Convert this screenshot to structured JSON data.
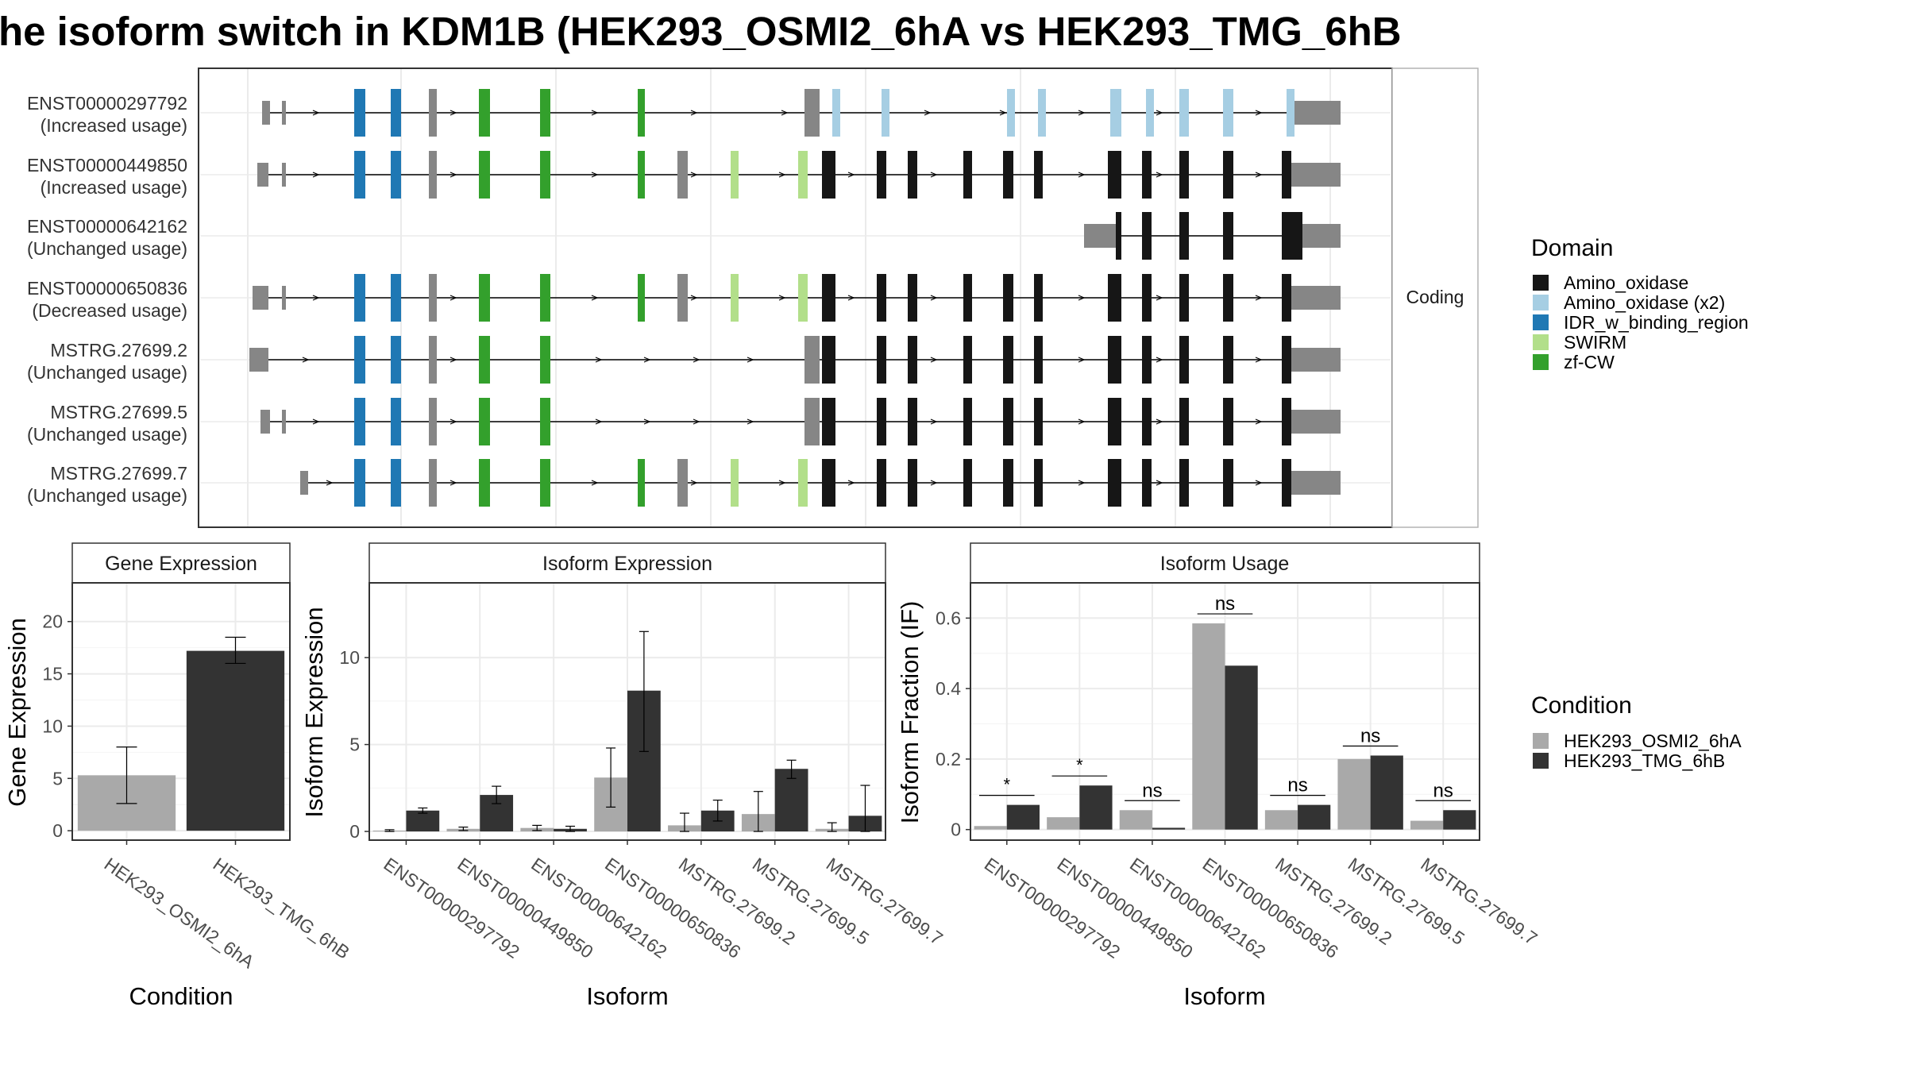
{
  "title": "he isoform switch in KDM1B (HEK293_OSMI2_6hA vs HEK293_TMG_6hB",
  "colors": {
    "Amino_oxidase": "#161616",
    "Amino_oxidase (x2)": "#a6cee3",
    "IDR_w_binding_region": "#1f78b4",
    "SWIRM": "#b2df8a",
    "zf-CW": "#33a02c",
    "noncoding": "#868686",
    "cond_a": "#a9a9a9",
    "cond_b": "#333333"
  },
  "structure": {
    "facet_label": "Coding",
    "transcripts": [
      {
        "id": "ENST00000297792",
        "usage": "(Increased usage)",
        "exons": [
          [
            330,
            340,
            "grey"
          ],
          [
            355,
            360,
            "grey"
          ],
          [
            446,
            460,
            "IDR_w_binding_region"
          ],
          [
            492,
            505,
            "IDR_w_binding_region"
          ],
          [
            540,
            550,
            "grey"
          ],
          [
            603,
            617,
            "zf-CW"
          ],
          [
            680,
            693,
            "zf-CW"
          ],
          [
            803,
            812,
            "zf-CW"
          ],
          [
            1013,
            1032,
            "grey"
          ],
          [
            1048,
            1058,
            "Amino_oxidase (x2)"
          ],
          [
            1110,
            1120,
            "Amino_oxidase (x2)"
          ],
          [
            1268,
            1278,
            "Amino_oxidase (x2)"
          ],
          [
            1307,
            1317,
            "Amino_oxidase (x2)"
          ],
          [
            1398,
            1412,
            "Amino_oxidase (x2)"
          ],
          [
            1443,
            1453,
            "Amino_oxidase (x2)"
          ],
          [
            1485,
            1497,
            "Amino_oxidase (x2)"
          ],
          [
            1540,
            1553,
            "Amino_oxidase (x2)"
          ],
          [
            1620,
            1630,
            "Amino_oxidase (x2)"
          ],
          [
            1630,
            1688,
            "grey"
          ]
        ],
        "cds_start": 446,
        "utr_end": 1630,
        "arrows": [
          398,
          571,
          749,
          874,
          988,
          1168,
          1263,
          1362,
          1460,
          1585
        ]
      },
      {
        "id": "ENST00000449850",
        "usage": "(Increased usage)",
        "exons": [
          [
            324,
            338,
            "grey"
          ],
          [
            355,
            360,
            "grey"
          ],
          [
            446,
            460,
            "IDR_w_binding_region"
          ],
          [
            492,
            505,
            "IDR_w_binding_region"
          ],
          [
            540,
            550,
            "grey"
          ],
          [
            603,
            617,
            "zf-CW"
          ],
          [
            680,
            693,
            "zf-CW"
          ],
          [
            803,
            812,
            "zf-CW"
          ],
          [
            853,
            866,
            "grey"
          ],
          [
            920,
            930,
            "SWIRM"
          ],
          [
            1005,
            1017,
            "SWIRM"
          ],
          [
            1035,
            1052,
            "Amino_oxidase"
          ],
          [
            1104,
            1116,
            "Amino_oxidase"
          ],
          [
            1143,
            1155,
            "Amino_oxidase"
          ],
          [
            1213,
            1224,
            "Amino_oxidase"
          ],
          [
            1263,
            1276,
            "Amino_oxidase"
          ],
          [
            1302,
            1313,
            "Amino_oxidase"
          ],
          [
            1395,
            1412,
            "Amino_oxidase"
          ],
          [
            1438,
            1450,
            "Amino_oxidase"
          ],
          [
            1485,
            1497,
            "Amino_oxidase"
          ],
          [
            1540,
            1553,
            "Amino_oxidase"
          ],
          [
            1614,
            1626,
            "Amino_oxidase"
          ],
          [
            1626,
            1688,
            "grey"
          ]
        ],
        "cds_start": 446,
        "utr_end": 1626,
        "arrows": [
          398,
          571,
          749,
          874,
          985,
          1072,
          1176,
          1362,
          1460,
          1585
        ]
      },
      {
        "id": "ENST00000642162",
        "usage": "(Unchanged usage)",
        "exons": [
          [
            1365,
            1405,
            "grey"
          ],
          [
            1405,
            1412,
            "Amino_oxidase"
          ],
          [
            1438,
            1450,
            "Amino_oxidase"
          ],
          [
            1485,
            1497,
            "Amino_oxidase"
          ],
          [
            1540,
            1553,
            "Amino_oxidase"
          ],
          [
            1614,
            1640,
            "Amino_oxidase"
          ],
          [
            1640,
            1688,
            "grey"
          ]
        ],
        "cds_start": 1405,
        "utr_end": 1640,
        "arrows": []
      },
      {
        "id": "ENST00000650836",
        "usage": "(Decreased usage)",
        "exons": [
          [
            318,
            338,
            "grey"
          ],
          [
            355,
            360,
            "grey"
          ],
          [
            446,
            460,
            "IDR_w_binding_region"
          ],
          [
            492,
            505,
            "IDR_w_binding_region"
          ],
          [
            540,
            550,
            "grey"
          ],
          [
            603,
            617,
            "zf-CW"
          ],
          [
            680,
            693,
            "zf-CW"
          ],
          [
            803,
            812,
            "zf-CW"
          ],
          [
            853,
            866,
            "grey"
          ],
          [
            920,
            930,
            "SWIRM"
          ],
          [
            1005,
            1017,
            "SWIRM"
          ],
          [
            1035,
            1052,
            "Amino_oxidase"
          ],
          [
            1104,
            1116,
            "Amino_oxidase"
          ],
          [
            1143,
            1155,
            "Amino_oxidase"
          ],
          [
            1213,
            1224,
            "Amino_oxidase"
          ],
          [
            1263,
            1276,
            "Amino_oxidase"
          ],
          [
            1302,
            1313,
            "Amino_oxidase"
          ],
          [
            1395,
            1412,
            "Amino_oxidase"
          ],
          [
            1438,
            1450,
            "Amino_oxidase"
          ],
          [
            1485,
            1497,
            "Amino_oxidase"
          ],
          [
            1540,
            1553,
            "Amino_oxidase"
          ],
          [
            1614,
            1626,
            "Amino_oxidase"
          ],
          [
            1626,
            1688,
            "grey"
          ]
        ],
        "cds_start": 446,
        "utr_end": 1626,
        "arrows": [
          398,
          571,
          749,
          874,
          985,
          1072,
          1176,
          1362,
          1460,
          1585
        ]
      },
      {
        "id": "MSTRG.27699.2",
        "usage": "(Unchanged usage)",
        "exons": [
          [
            314,
            338,
            "grey"
          ],
          [
            446,
            460,
            "IDR_w_binding_region"
          ],
          [
            492,
            505,
            "IDR_w_binding_region"
          ],
          [
            540,
            550,
            "grey"
          ],
          [
            603,
            617,
            "zf-CW"
          ],
          [
            680,
            693,
            "zf-CW"
          ],
          [
            1013,
            1032,
            "grey"
          ],
          [
            1035,
            1052,
            "Amino_oxidase"
          ],
          [
            1104,
            1116,
            "Amino_oxidase"
          ],
          [
            1143,
            1155,
            "Amino_oxidase"
          ],
          [
            1213,
            1224,
            "Amino_oxidase"
          ],
          [
            1263,
            1276,
            "Amino_oxidase"
          ],
          [
            1302,
            1313,
            "Amino_oxidase"
          ],
          [
            1395,
            1412,
            "Amino_oxidase"
          ],
          [
            1438,
            1450,
            "Amino_oxidase"
          ],
          [
            1485,
            1497,
            "Amino_oxidase"
          ],
          [
            1540,
            1553,
            "Amino_oxidase"
          ],
          [
            1614,
            1626,
            "Amino_oxidase"
          ],
          [
            1626,
            1688,
            "grey"
          ]
        ],
        "cds_start": 446,
        "utr_end": 1626,
        "arrows": [
          385,
          571,
          754,
          815,
          877,
          945,
          1176,
          1362,
          1460,
          1585
        ]
      },
      {
        "id": "MSTRG.27699.5",
        "usage": "(Unchanged usage)",
        "exons": [
          [
            328,
            340,
            "grey"
          ],
          [
            355,
            360,
            "grey"
          ],
          [
            446,
            460,
            "IDR_w_binding_region"
          ],
          [
            492,
            505,
            "IDR_w_binding_region"
          ],
          [
            540,
            550,
            "grey"
          ],
          [
            603,
            617,
            "zf-CW"
          ],
          [
            680,
            693,
            "zf-CW"
          ],
          [
            1013,
            1032,
            "grey"
          ],
          [
            1035,
            1052,
            "Amino_oxidase"
          ],
          [
            1104,
            1116,
            "Amino_oxidase"
          ],
          [
            1143,
            1155,
            "Amino_oxidase"
          ],
          [
            1213,
            1224,
            "Amino_oxidase"
          ],
          [
            1263,
            1276,
            "Amino_oxidase"
          ],
          [
            1302,
            1313,
            "Amino_oxidase"
          ],
          [
            1395,
            1412,
            "Amino_oxidase"
          ],
          [
            1438,
            1450,
            "Amino_oxidase"
          ],
          [
            1485,
            1497,
            "Amino_oxidase"
          ],
          [
            1540,
            1553,
            "Amino_oxidase"
          ],
          [
            1614,
            1626,
            "Amino_oxidase"
          ],
          [
            1626,
            1688,
            "grey"
          ]
        ],
        "cds_start": 446,
        "utr_end": 1626,
        "arrows": [
          398,
          571,
          754,
          815,
          877,
          945,
          1176,
          1362,
          1460,
          1585
        ]
      },
      {
        "id": "MSTRG.27699.7",
        "usage": "(Unchanged usage)",
        "exons": [
          [
            378,
            388,
            "grey"
          ],
          [
            446,
            460,
            "IDR_w_binding_region"
          ],
          [
            492,
            505,
            "IDR_w_binding_region"
          ],
          [
            540,
            550,
            "grey"
          ],
          [
            603,
            617,
            "zf-CW"
          ],
          [
            680,
            693,
            "zf-CW"
          ],
          [
            803,
            812,
            "zf-CW"
          ],
          [
            853,
            866,
            "grey"
          ],
          [
            920,
            930,
            "SWIRM"
          ],
          [
            1005,
            1017,
            "SWIRM"
          ],
          [
            1035,
            1052,
            "Amino_oxidase"
          ],
          [
            1104,
            1116,
            "Amino_oxidase"
          ],
          [
            1143,
            1155,
            "Amino_oxidase"
          ],
          [
            1213,
            1224,
            "Amino_oxidase"
          ],
          [
            1263,
            1276,
            "Amino_oxidase"
          ],
          [
            1302,
            1313,
            "Amino_oxidase"
          ],
          [
            1395,
            1412,
            "Amino_oxidase"
          ],
          [
            1438,
            1450,
            "Amino_oxidase"
          ],
          [
            1485,
            1497,
            "Amino_oxidase"
          ],
          [
            1540,
            1553,
            "Amino_oxidase"
          ],
          [
            1614,
            1626,
            "Amino_oxidase"
          ],
          [
            1626,
            1688,
            "grey"
          ]
        ],
        "cds_start": 446,
        "utr_end": 1626,
        "arrows": [
          415,
          571,
          749,
          874,
          985,
          1072,
          1176,
          1362,
          1460,
          1585
        ]
      }
    ]
  },
  "legend_domain": {
    "title": "Domain",
    "items": [
      "Amino_oxidase",
      "Amino_oxidase (x2)",
      "IDR_w_binding_region",
      "SWIRM",
      "zf-CW"
    ]
  },
  "legend_condition": {
    "title": "Condition",
    "items": [
      "HEK293_OSMI2_6hA",
      "HEK293_TMG_6hB"
    ]
  },
  "chart_data": [
    {
      "type": "bar",
      "title": "Gene Expression",
      "xlabel": "Condition",
      "ylabel": "Gene Expression",
      "categories": [
        "HEK293_OSMI2_6hA",
        "HEK293_TMG_6hB"
      ],
      "values": [
        5.3,
        17.2
      ],
      "error_low": [
        2.6,
        16.0
      ],
      "error_high": [
        8.0,
        18.5
      ],
      "ylim": [
        -0.9,
        23.7
      ],
      "yticks": [
        0,
        5,
        10,
        15,
        20
      ]
    },
    {
      "type": "bar",
      "title": "Isoform Expression",
      "xlabel": "Isoform",
      "ylabel": "Isoform Expression",
      "categories": [
        "ENST00000297792",
        "ENST00000449850",
        "ENST00000642162",
        "ENST00000650836",
        "MSTRG.27699.2",
        "MSTRG.27699.5",
        "MSTRG.27699.7"
      ],
      "series": [
        {
          "name": "HEK293_OSMI2_6hA",
          "values": [
            0.05,
            0.15,
            0.2,
            3.1,
            0.35,
            1.0,
            0.15
          ],
          "error_low": [
            0.0,
            0.05,
            0.05,
            1.4,
            0.0,
            0.0,
            0.0
          ],
          "error_high": [
            0.1,
            0.25,
            0.35,
            4.8,
            1.05,
            2.3,
            0.5
          ]
        },
        {
          "name": "HEK293_TMG_6hB",
          "values": [
            1.2,
            2.1,
            0.15,
            8.1,
            1.2,
            3.6,
            0.9
          ],
          "error_low": [
            1.05,
            1.6,
            0.0,
            4.6,
            0.6,
            3.05,
            0.0
          ],
          "error_high": [
            1.35,
            2.6,
            0.3,
            11.5,
            1.8,
            4.1,
            2.65
          ]
        }
      ],
      "ylim": [
        -0.5,
        14.3
      ],
      "yticks": [
        0,
        5,
        10
      ]
    },
    {
      "type": "bar",
      "title": "Isoform Usage",
      "xlabel": "Isoform",
      "ylabel": "Isoform Fraction (IF)",
      "categories": [
        "ENST00000297792",
        "ENST00000449850",
        "ENST00000642162",
        "ENST00000650836",
        "MSTRG.27699.2",
        "MSTRG.27699.5",
        "MSTRG.27699.7"
      ],
      "series": [
        {
          "name": "HEK293_OSMI2_6hA",
          "values": [
            0.01,
            0.035,
            0.055,
            0.585,
            0.055,
            0.2,
            0.025
          ]
        },
        {
          "name": "HEK293_TMG_6hB",
          "values": [
            0.07,
            0.125,
            0.005,
            0.465,
            0.07,
            0.21,
            0.055
          ]
        }
      ],
      "significance": [
        "*",
        "*",
        "ns",
        "ns",
        "ns",
        "ns",
        "ns"
      ],
      "ylim": [
        -0.03,
        0.7
      ],
      "yticks": [
        0.0,
        0.2,
        0.4,
        0.6
      ]
    }
  ]
}
